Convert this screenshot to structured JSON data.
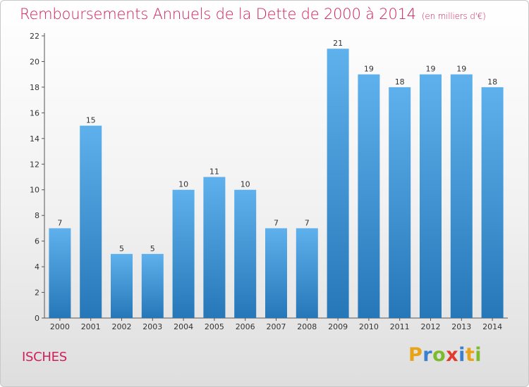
{
  "header": {
    "title": "Remboursements Annuels de la Dette de 2000 à 2014",
    "unit": "(en milliers d'€)"
  },
  "footer": {
    "commune": "ISCHES",
    "logo_letters": [
      "P",
      "r",
      "o",
      "x",
      "i",
      "t",
      "i"
    ]
  },
  "chart_data": {
    "type": "bar",
    "title": "Remboursements Annuels de la Dette de 2000 à 2014",
    "subtitle": "(en milliers d'€)",
    "categories": [
      "2000",
      "2001",
      "2002",
      "2003",
      "2004",
      "2005",
      "2006",
      "2007",
      "2008",
      "2009",
      "2010",
      "2011",
      "2012",
      "2013",
      "2014"
    ],
    "values": [
      7,
      15,
      5,
      5,
      10,
      11,
      10,
      7,
      7,
      21,
      19,
      18,
      19,
      19,
      18
    ],
    "ylim": [
      0,
      22
    ],
    "yticks": [
      0,
      2,
      4,
      6,
      8,
      10,
      12,
      14,
      16,
      18,
      20,
      22
    ],
    "grid": false,
    "legend": "none",
    "bar_color": "#4a9fe0"
  }
}
